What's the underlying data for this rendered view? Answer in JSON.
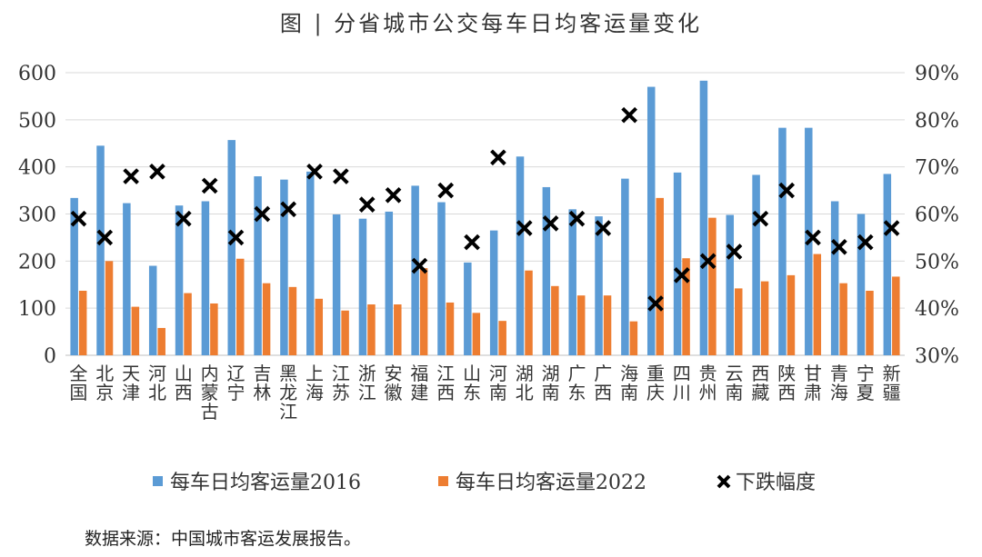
{
  "chart_data": {
    "type": "bar",
    "title": "图 | 分省城市公交每车日均客运量变化",
    "categories": [
      "全国",
      "北京",
      "天津",
      "河北",
      "山西",
      "内蒙古",
      "辽宁",
      "吉林",
      "黑龙江",
      "上海",
      "江苏",
      "浙江",
      "安徽",
      "福建",
      "江西",
      "山东",
      "河南",
      "湖北",
      "湖南",
      "广东",
      "广西",
      "海南",
      "重庆",
      "四川",
      "贵州",
      "云南",
      "西藏",
      "陕西",
      "甘肃",
      "青海",
      "宁夏",
      "新疆"
    ],
    "series": [
      {
        "name": "每车日均客运量2016",
        "type": "bar",
        "axis": "left",
        "color": "#5b9bd5",
        "values": [
          334,
          445,
          323,
          190,
          318,
          327,
          457,
          380,
          373,
          390,
          299,
          290,
          305,
          360,
          325,
          197,
          265,
          422,
          357,
          310,
          295,
          375,
          570,
          388,
          583,
          298,
          383,
          483,
          483,
          327,
          300,
          385
        ]
      },
      {
        "name": "每车日均客运量2022",
        "type": "bar",
        "axis": "left",
        "color": "#ed7d31",
        "values": [
          137,
          200,
          103,
          58,
          132,
          110,
          205,
          153,
          145,
          120,
          95,
          108,
          108,
          185,
          112,
          90,
          73,
          180,
          147,
          127,
          127,
          72,
          334,
          206,
          292,
          142,
          157,
          170,
          215,
          153,
          137,
          167
        ]
      },
      {
        "name": "下跌幅度",
        "type": "scatter",
        "marker": "x",
        "axis": "right",
        "color": "#000000",
        "values": [
          59,
          55,
          68,
          69,
          59,
          66,
          55,
          60,
          61,
          69,
          68,
          62,
          64,
          49,
          65,
          54,
          72,
          57,
          58,
          59,
          57,
          81,
          41,
          47,
          50,
          52,
          59,
          65,
          55,
          53,
          54,
          57
        ]
      }
    ],
    "y_left": {
      "min": 0,
      "max": 600,
      "step": 100,
      "ticks": [
        "0",
        "100",
        "200",
        "300",
        "400",
        "500",
        "600"
      ]
    },
    "y_right": {
      "min": 30,
      "max": 90,
      "step": 10,
      "ticks": [
        "30%",
        "40%",
        "50%",
        "60%",
        "70%",
        "80%",
        "90%"
      ]
    },
    "grid": true,
    "legend_position": "bottom"
  },
  "source": "数据来源：中国城市客运发展报告。"
}
